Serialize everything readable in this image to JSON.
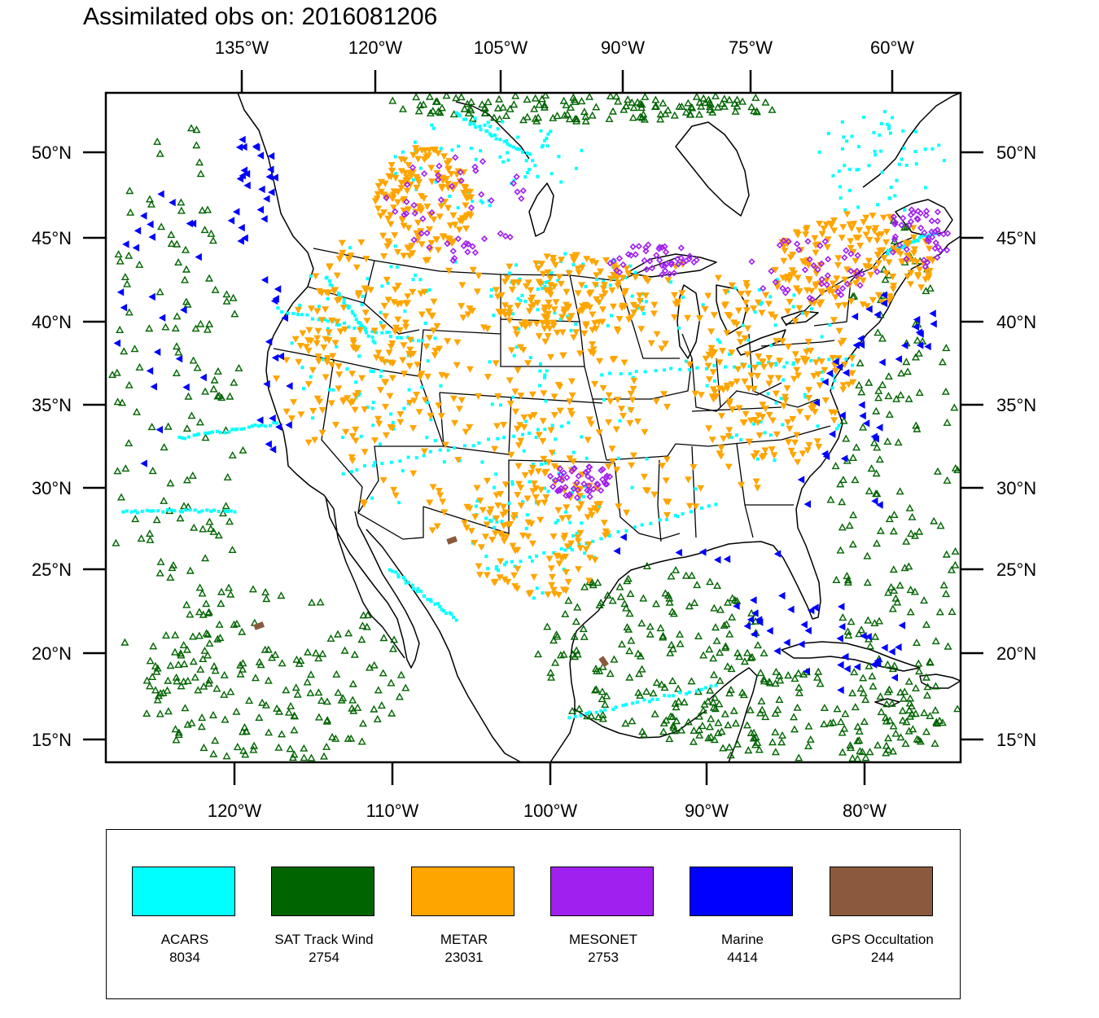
{
  "title": "Assimilated obs on: 2016081206",
  "map": {
    "top_lon_labels": [
      "135°W",
      "120°W",
      "105°W",
      "90°W",
      "75°W",
      "60°W"
    ],
    "bottom_lon_labels": [
      "120°W",
      "110°W",
      "100°W",
      "90°W",
      "80°W"
    ],
    "left_lat_labels": [
      "50°N",
      "45°N",
      "40°N",
      "35°N",
      "30°N",
      "25°N",
      "20°N",
      "15°N"
    ],
    "right_lat_labels": [
      "50°N",
      "45°N",
      "40°N",
      "35°N",
      "30°N",
      "25°N",
      "20°N",
      "15°N"
    ],
    "boundary_color": "#000000"
  },
  "legend": {
    "entries": [
      {
        "name": "ACARS",
        "count": "8034",
        "color": "#00ffff",
        "marker": "dot"
      },
      {
        "name": "SAT Track Wind",
        "count": "2754",
        "color": "#006400",
        "marker": "triangle-up"
      },
      {
        "name": "METAR",
        "count": "23031",
        "color": "#ffa500",
        "marker": "triangle-down"
      },
      {
        "name": "MESONET",
        "count": "2753",
        "color": "#a020f0",
        "marker": "diamond"
      },
      {
        "name": "Marine",
        "count": "4414",
        "color": "#0000ff",
        "marker": "triangle-left"
      },
      {
        "name": "GPS Occultation",
        "count": "244",
        "color": "#8b5a3c",
        "marker": "rectangle"
      }
    ]
  }
}
